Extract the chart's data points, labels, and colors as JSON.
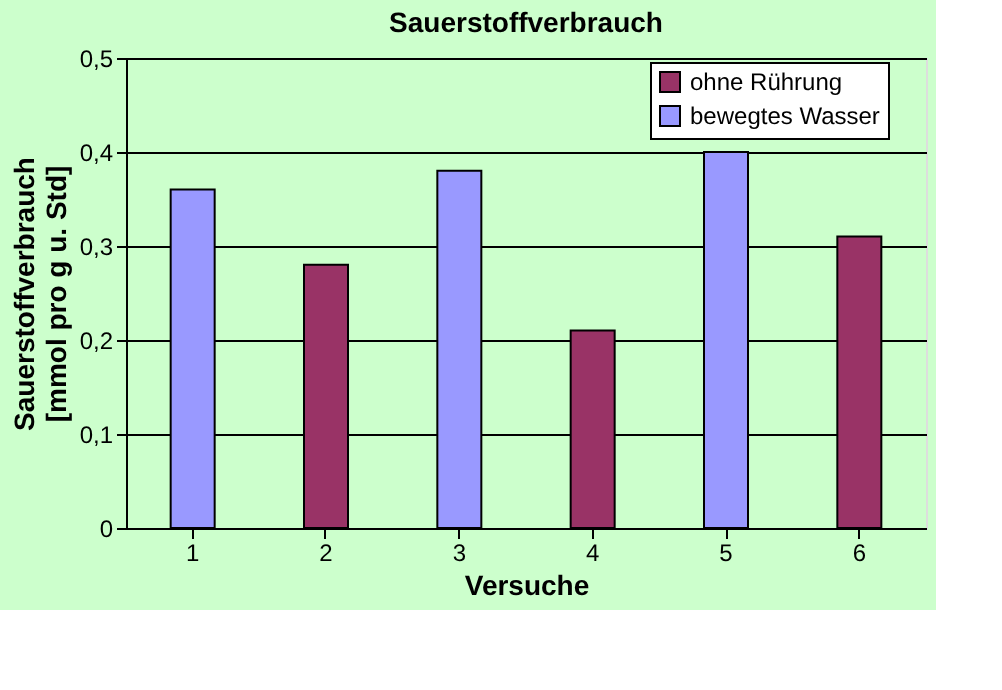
{
  "chart_data": {
    "type": "bar",
    "title": "Sauerstoffverbrauch",
    "xlabel": "Versuche",
    "ylabel": "Sauerstoffverbrauch\n[mmol pro g u. Std]",
    "categories": [
      "1",
      "2",
      "3",
      "4",
      "5",
      "6"
    ],
    "series": [
      {
        "name": "ohne Rührung",
        "color": "#993366",
        "values": [
          null,
          0.28,
          null,
          0.21,
          null,
          0.31
        ]
      },
      {
        "name": "bewegtes Wasser",
        "color": "#9999ff",
        "values": [
          0.36,
          null,
          0.38,
          null,
          0.4,
          null
        ]
      }
    ],
    "ylim": [
      0,
      0.5
    ],
    "yticks": [
      0,
      {
        "value": 0.1,
        "label": "0,1"
      },
      {
        "value": 0.2,
        "label": "0,2"
      },
      {
        "value": 0.3,
        "label": "0,3"
      },
      {
        "value": 0.4,
        "label": "0,4"
      },
      {
        "value": 0.5,
        "label": "0,5"
      }
    ],
    "grid": "y",
    "legend": "top right"
  }
}
